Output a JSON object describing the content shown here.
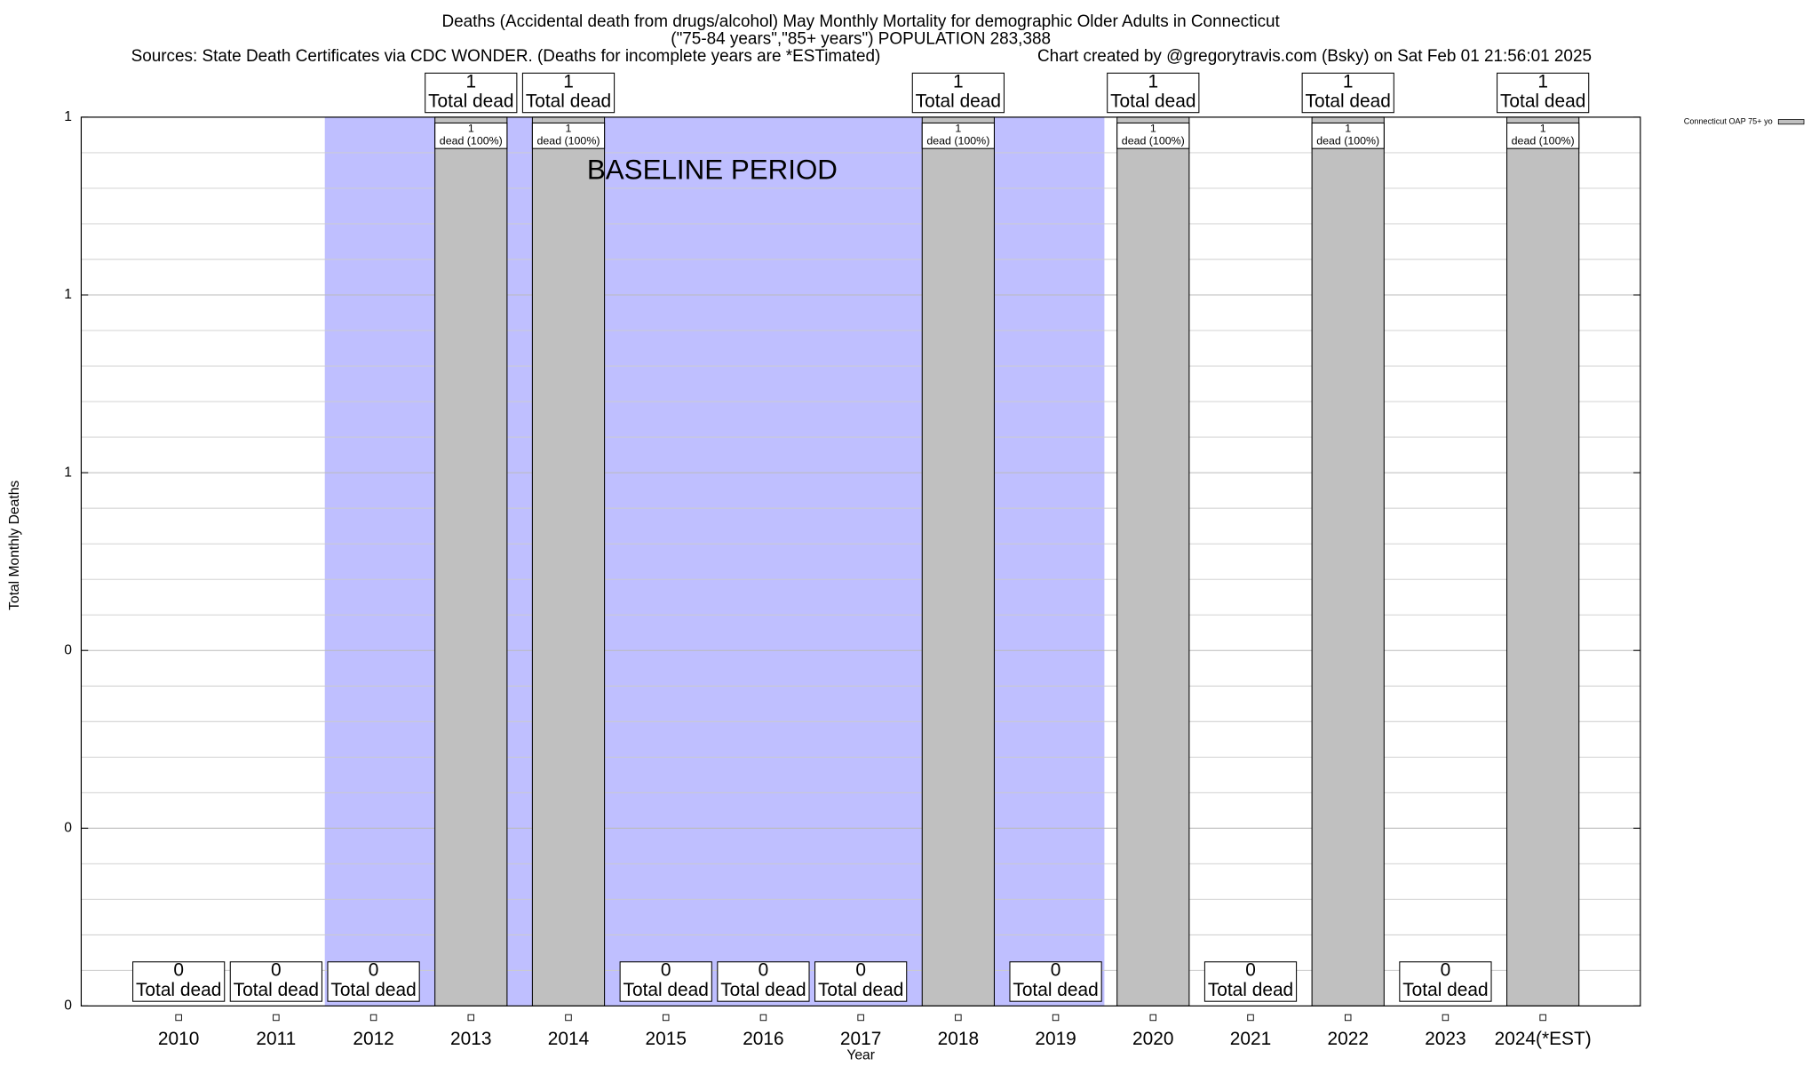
{
  "chart_data": {
    "type": "bar",
    "title": "Deaths (Accidental death from drugs/alcohol) May Monthly Mortality for demographic Older Adults in Connecticut",
    "subtitle": "(\"75-84 years\",\"85+ years\") POPULATION 283,388",
    "source": "Sources: State Death Certificates via CDC WONDER. (Deaths for incomplete years are *ESTimated)",
    "credit": "Chart created by @gregorytravis.com (Bsky) on Sat Feb 01 21:56:01 2025",
    "x_label": "Year",
    "y_label": "Total Monthly Deaths",
    "categories": [
      "2010",
      "2011",
      "2012",
      "2013",
      "2014",
      "2015",
      "2016",
      "2017",
      "2018",
      "2019",
      "2020",
      "2021",
      "2022",
      "2023",
      "2024(*EST)"
    ],
    "series": [
      {
        "name": "Connecticut OAP 75+ yo",
        "color": "#c0c0c0",
        "values": [
          0,
          0,
          0,
          1,
          1,
          0,
          0,
          0,
          1,
          0,
          1,
          0,
          1,
          0,
          1
        ],
        "share_labels": [
          null,
          null,
          null,
          "dead (100%)",
          "dead (100%)",
          null,
          null,
          null,
          "dead (100%)",
          null,
          "dead (100%)",
          null,
          "dead (100%)",
          null,
          "dead (100%)"
        ]
      }
    ],
    "total_label": "Total dead",
    "baseline_period": {
      "label": "BASELINE PERIOD",
      "start": "2012",
      "end": "2019",
      "color": "#bfbfff"
    },
    "ylim": [
      0,
      1
    ],
    "yticks": [
      0,
      {
        "value": 0.2,
        "label": "0"
      },
      {
        "value": 0.4,
        "label": "0"
      },
      {
        "value": 0.6,
        "label": "1"
      },
      {
        "value": 0.8,
        "label": "1"
      },
      1
    ],
    "minor_grid_subdivisions": 5,
    "grid": true,
    "legend": "top-right"
  }
}
